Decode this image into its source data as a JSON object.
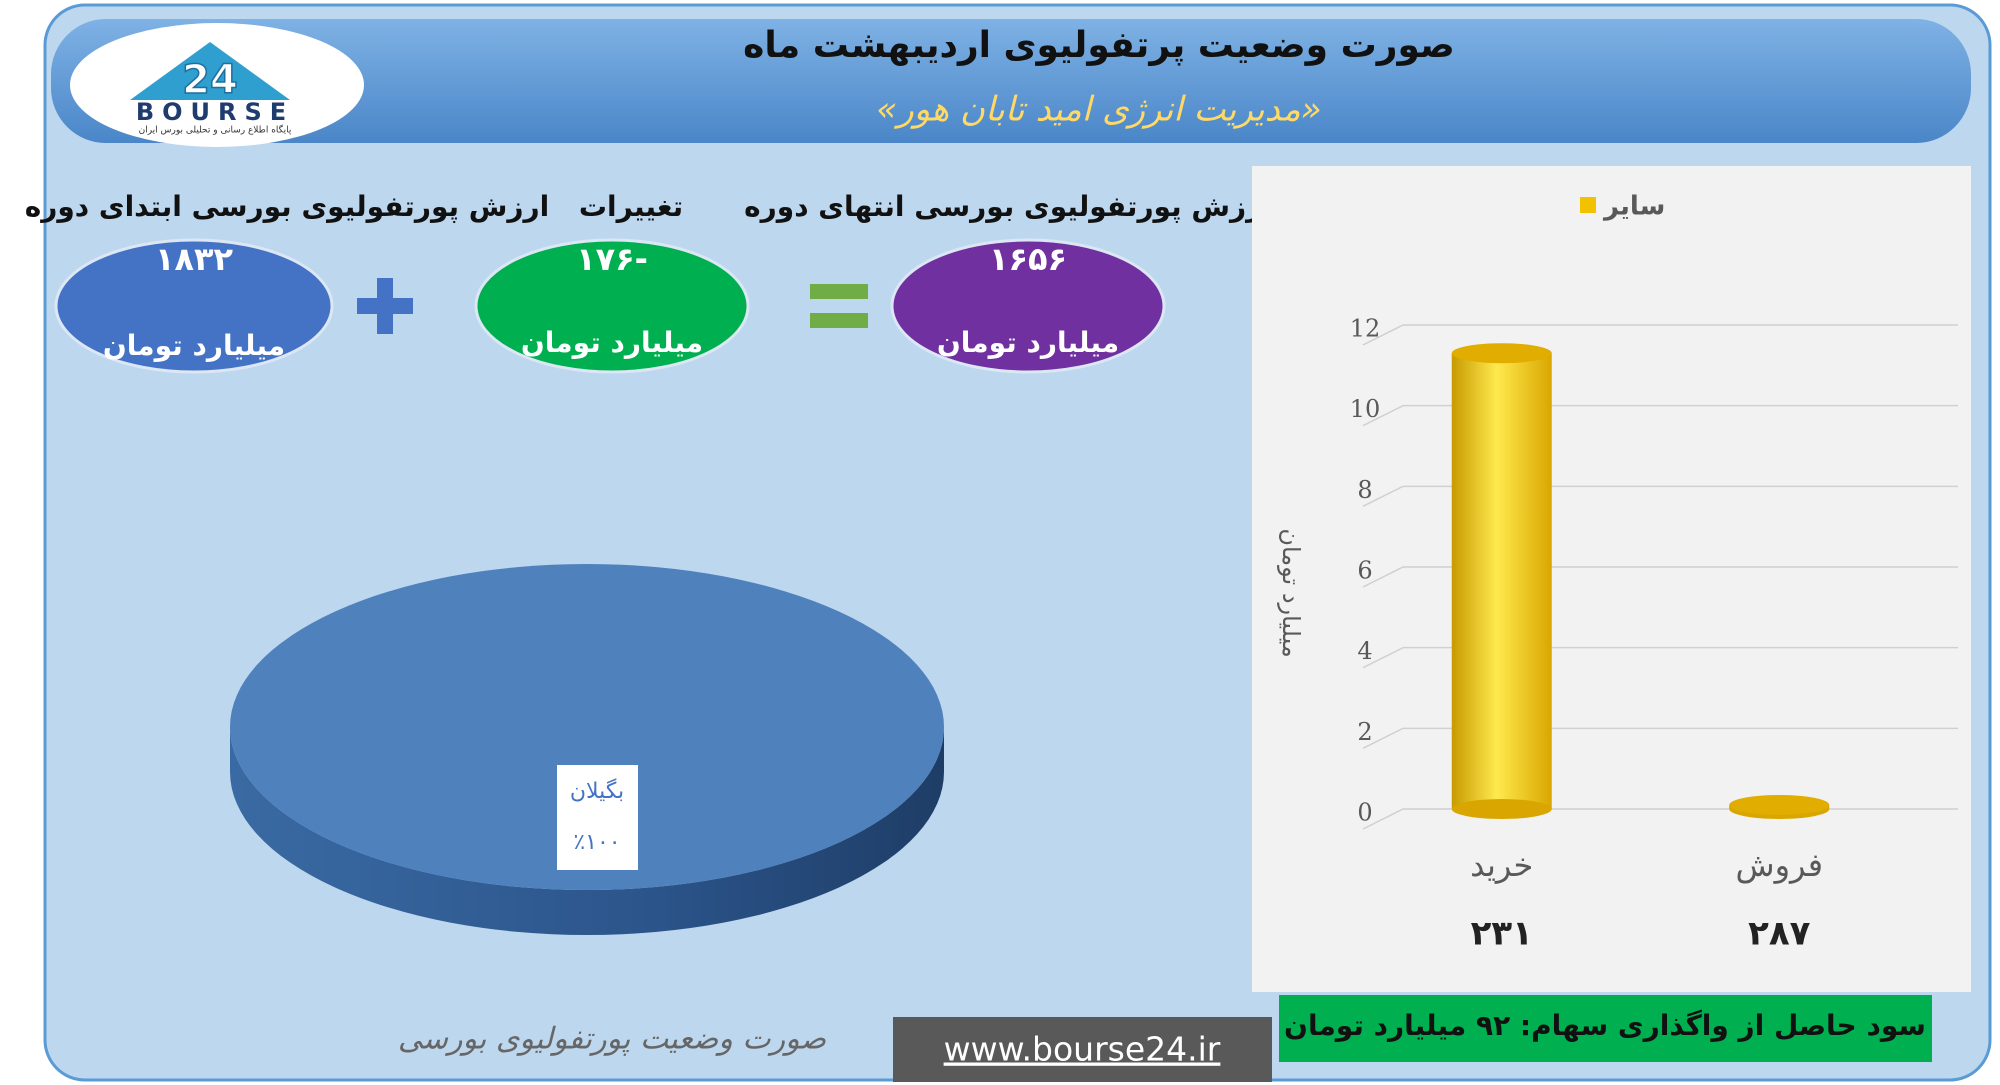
{
  "header": {
    "title": "صورت وضعیت پرتفولیوی اردیبهشت ماه",
    "subtitle": "«مدیریت انرژی امید تابان هور»",
    "logo_number": "24",
    "logo_text": "BOURSE",
    "logo_caption": "پایگاه اطلاع رسانی و تحلیلی بورس ایران"
  },
  "summary": {
    "start": {
      "label": "ارزش پورتفولیوی بورسی ابتدای دوره",
      "value": "۱۸۳۲",
      "unit": "میلیارد تومان"
    },
    "change": {
      "label": "تغییرات",
      "value": "-۱۷۶",
      "unit": "میلیارد تومان"
    },
    "end": {
      "label": "ارزش پورتفولیوی بورسی انتهای دوره",
      "value": "۱۶۵۶",
      "unit": "میلیارد تومان"
    }
  },
  "chart_data": [
    {
      "type": "pie",
      "caption": "صورت وضعیت پورتفولیوی بورسی",
      "categories": [
        "بگیلان"
      ],
      "values": [
        100
      ],
      "value_labels": [
        "٪۱۰۰"
      ],
      "colors": [
        "#4f81bd"
      ]
    },
    {
      "type": "bar",
      "ylabel": "میلیارد تومان",
      "categories": [
        "خرید",
        "فروش"
      ],
      "category_notes": [
        "۲۳۱",
        "۲۸۷"
      ],
      "series": [
        {
          "name": "سایر",
          "color": "#f2c200",
          "values": [
            11.3,
            0.1
          ]
        }
      ],
      "ylim": [
        0,
        12
      ],
      "yticks": [
        0,
        2,
        4,
        6,
        8,
        10,
        12
      ],
      "grid": true,
      "legend": "top"
    }
  ],
  "footer": {
    "note": "سود حاصل از واگذاری سهام: ۹۲ میلیارد تومان",
    "website": "www.bourse24.ir"
  }
}
